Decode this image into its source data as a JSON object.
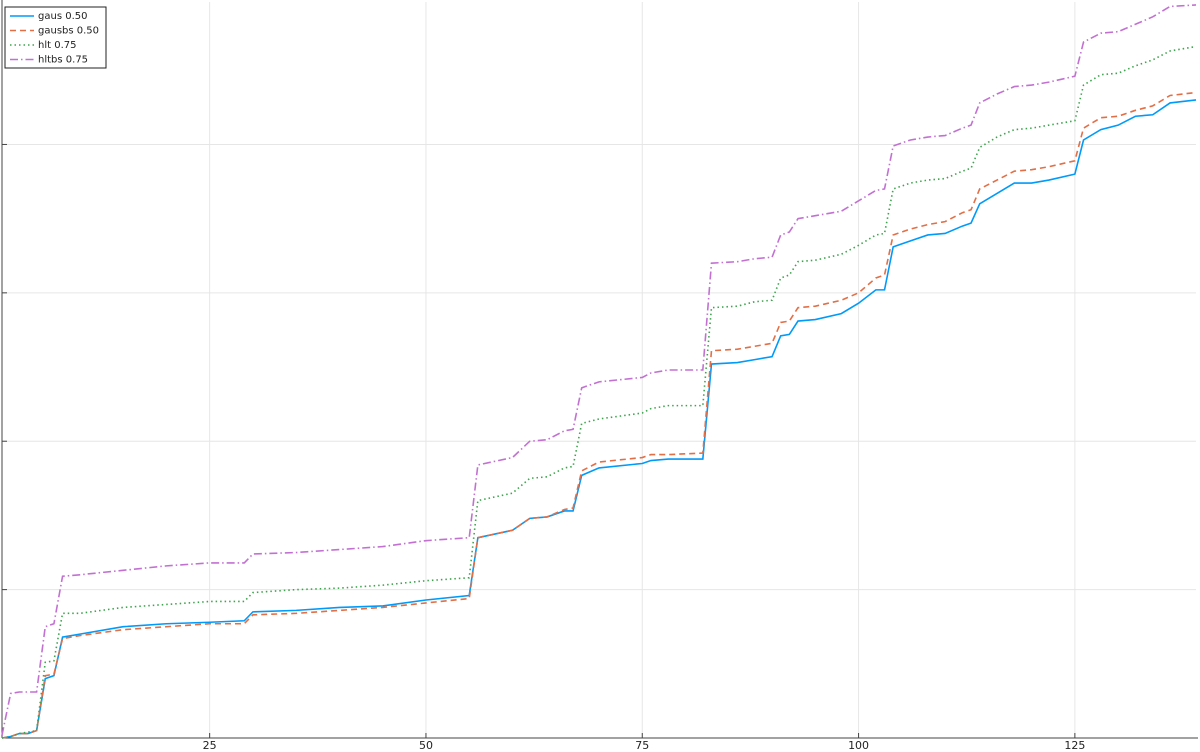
{
  "chart_data": {
    "type": "line",
    "x": [
      1,
      2,
      3,
      4,
      5,
      6,
      7,
      8,
      10,
      15,
      20,
      25,
      29,
      30,
      35,
      40,
      45,
      50,
      55,
      56,
      60,
      62,
      64,
      66,
      67,
      68,
      70,
      75,
      76,
      78,
      82,
      83,
      86,
      88,
      90,
      91,
      92,
      93,
      95,
      98,
      100,
      102,
      103,
      104,
      106,
      108,
      110,
      112,
      113,
      114,
      116,
      118,
      120,
      122,
      125,
      126,
      128,
      130,
      132,
      134,
      136,
      139
    ],
    "xlim": [
      1,
      139
    ],
    "xticks": [
      25,
      50,
      75,
      100,
      125
    ],
    "ylim": [
      0,
      4.96
    ],
    "yticks": [
      1,
      2,
      3,
      4
    ],
    "grid": true,
    "legend": "top-left",
    "series": [
      {
        "name": "gaus 0.50",
        "color": "#009af9",
        "dash": "solid",
        "values": [
          0,
          0.01,
          0.03,
          0.03,
          0.05,
          0.4,
          0.42,
          0.68,
          0.7,
          0.75,
          0.77,
          0.78,
          0.79,
          0.85,
          0.86,
          0.88,
          0.89,
          0.93,
          0.96,
          1.35,
          1.4,
          1.48,
          1.49,
          1.53,
          1.53,
          1.77,
          1.82,
          1.85,
          1.87,
          1.88,
          1.88,
          2.52,
          2.53,
          2.55,
          2.57,
          2.71,
          2.72,
          2.81,
          2.82,
          2.86,
          2.93,
          3.02,
          3.02,
          3.31,
          3.35,
          3.39,
          3.4,
          3.45,
          3.47,
          3.6,
          3.67,
          3.74,
          3.74,
          3.76,
          3.8,
          4.03,
          4.1,
          4.13,
          4.19,
          4.2,
          4.28,
          4.3
        ]
      },
      {
        "name": "gausbs 0.50",
        "color": "#e26f46",
        "dash": "dash",
        "values": [
          0,
          0.01,
          0.03,
          0.03,
          0.05,
          0.42,
          0.43,
          0.67,
          0.69,
          0.73,
          0.75,
          0.77,
          0.77,
          0.83,
          0.84,
          0.86,
          0.88,
          0.91,
          0.94,
          1.35,
          1.4,
          1.48,
          1.49,
          1.54,
          1.55,
          1.8,
          1.86,
          1.89,
          1.91,
          1.91,
          1.92,
          2.61,
          2.62,
          2.64,
          2.66,
          2.8,
          2.81,
          2.9,
          2.91,
          2.95,
          3.0,
          3.1,
          3.12,
          3.39,
          3.43,
          3.46,
          3.48,
          3.54,
          3.56,
          3.7,
          3.76,
          3.82,
          3.83,
          3.85,
          3.89,
          4.11,
          4.18,
          4.19,
          4.23,
          4.26,
          4.33,
          4.35
        ]
      },
      {
        "name": "hlt 0.75",
        "color": "#3da44d",
        "dash": "dot",
        "values": [
          0,
          0.01,
          0.03,
          0.04,
          0.05,
          0.51,
          0.52,
          0.84,
          0.84,
          0.88,
          0.9,
          0.92,
          0.92,
          0.98,
          1.0,
          1.01,
          1.03,
          1.06,
          1.08,
          1.6,
          1.65,
          1.75,
          1.76,
          1.82,
          1.83,
          2.12,
          2.15,
          2.19,
          2.22,
          2.24,
          2.24,
          2.9,
          2.91,
          2.94,
          2.95,
          3.1,
          3.12,
          3.21,
          3.22,
          3.26,
          3.32,
          3.39,
          3.4,
          3.7,
          3.74,
          3.76,
          3.77,
          3.82,
          3.84,
          3.98,
          4.05,
          4.1,
          4.11,
          4.13,
          4.16,
          4.4,
          4.47,
          4.48,
          4.53,
          4.57,
          4.63,
          4.66
        ]
      },
      {
        "name": "hltbs 0.75",
        "color": "#c271d2",
        "dash": "dashdot",
        "values": [
          0.02,
          0.3,
          0.31,
          0.31,
          0.31,
          0.75,
          0.77,
          1.09,
          1.1,
          1.13,
          1.16,
          1.18,
          1.18,
          1.24,
          1.25,
          1.27,
          1.29,
          1.33,
          1.35,
          1.84,
          1.89,
          2.0,
          2.01,
          2.07,
          2.08,
          2.36,
          2.4,
          2.43,
          2.46,
          2.48,
          2.48,
          3.2,
          3.21,
          3.23,
          3.24,
          3.39,
          3.41,
          3.5,
          3.52,
          3.55,
          3.62,
          3.69,
          3.7,
          3.99,
          4.03,
          4.05,
          4.06,
          4.11,
          4.13,
          4.28,
          4.34,
          4.39,
          4.4,
          4.42,
          4.46,
          4.69,
          4.75,
          4.76,
          4.81,
          4.86,
          4.93,
          4.94
        ]
      }
    ]
  }
}
